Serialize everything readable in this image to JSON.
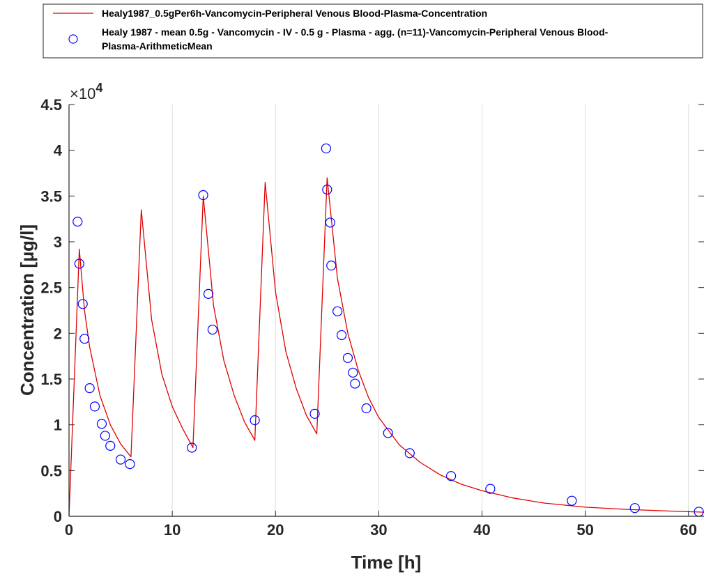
{
  "chart_data": {
    "type": "line",
    "xlabel": "Time [h]",
    "ylabel": "Concentration [µg/l]",
    "y_exponent_base": "×10",
    "y_exponent_power": "4",
    "xlim": [
      0,
      61.5
    ],
    "ylim": [
      0,
      45000
    ],
    "x_ticks": [
      0,
      10,
      20,
      30,
      40,
      50,
      60
    ],
    "x_tick_labels": [
      "0",
      "10",
      "20",
      "30",
      "40",
      "50",
      "60"
    ],
    "y_ticks": [
      0,
      5000,
      10000,
      15000,
      20000,
      25000,
      30000,
      35000,
      40000,
      45000
    ],
    "y_tick_labels": [
      "0",
      "0.5",
      "1",
      "1.5",
      "2",
      "2.5",
      "3",
      "3.5",
      "4",
      "4.5"
    ],
    "grid": "vertical",
    "legend_position": "top",
    "colors": {
      "simulation": "#e00000",
      "observed": "#0000ff",
      "axes": "#262626",
      "grid": "#dcdcdc"
    },
    "series": [
      {
        "name": "Healy1987_0.5gPer6h-Vancomycin-Peripheral Venous Blood-Plasma-Concentration",
        "kind": "line",
        "x": [
          0,
          1,
          1.5,
          2,
          3,
          4,
          5,
          6,
          7,
          8,
          9,
          10,
          11,
          12,
          13,
          14,
          15,
          16,
          17,
          18,
          19,
          20,
          21,
          22,
          23,
          24,
          25,
          26,
          27,
          28,
          29,
          30,
          32,
          34,
          36,
          38,
          40,
          43,
          46,
          50,
          54,
          58,
          61.5
        ],
        "y": [
          0,
          29200,
          22500,
          18500,
          13200,
          10000,
          7900,
          6500,
          33500,
          21500,
          15500,
          12000,
          9600,
          7500,
          35000,
          23000,
          17000,
          13200,
          10300,
          8300,
          36500,
          24500,
          18000,
          14000,
          11000,
          9000,
          37000,
          26000,
          20000,
          16000,
          13000,
          10800,
          7800,
          5900,
          4500,
          3500,
          2800,
          2000,
          1450,
          1000,
          750,
          580,
          450
        ]
      },
      {
        "name": "Healy 1987 - mean 0.5g - Vancomycin - IV - 0.5 g - Plasma - agg. (n=11)-Vancomycin-Peripheral Venous Blood-Plasma-ArithmeticMean",
        "kind": "scatter",
        "x": [
          0.83,
          1.0,
          1.33,
          1.5,
          2.0,
          2.5,
          3.17,
          3.5,
          4.0,
          5.0,
          5.9,
          11.9,
          13.0,
          13.5,
          13.9,
          18.0,
          23.8,
          24.9,
          25.0,
          25.3,
          25.4,
          26.0,
          26.4,
          27.0,
          27.5,
          27.7,
          28.8,
          30.9,
          33.0,
          37.0,
          40.8,
          48.7,
          54.8,
          61.0
        ],
        "y": [
          32200,
          27600,
          23200,
          19400,
          14000,
          12000,
          10100,
          8800,
          7700,
          6200,
          5700,
          7500,
          35100,
          24300,
          20400,
          10500,
          11200,
          40200,
          35700,
          32100,
          27400,
          22400,
          19800,
          17300,
          15700,
          14500,
          11800,
          9100,
          6900,
          4400,
          3000,
          1700,
          900,
          500
        ]
      }
    ]
  }
}
